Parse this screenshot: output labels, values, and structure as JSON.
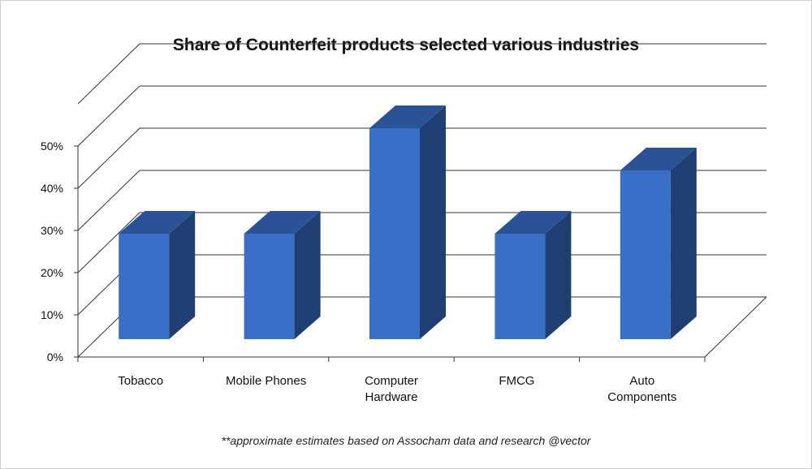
{
  "chart_data": {
    "type": "bar",
    "title": "Share of Counterfeit products selected various industries",
    "categories": [
      [
        "Tobacco"
      ],
      [
        "Mobile Phones"
      ],
      [
        "Computer",
        "Hardware"
      ],
      [
        "FMCG"
      ],
      [
        "Auto",
        "Components"
      ]
    ],
    "values": [
      25,
      25,
      50,
      25,
      40
    ],
    "ylim": [
      0,
      60
    ],
    "yticks": [
      "0%",
      "10%",
      "20%",
      "30%",
      "40%",
      "50%"
    ],
    "grid": true,
    "style": "3d",
    "colors": {
      "front": "#3a6fc8",
      "side": "#1f3f73",
      "top": "#2b5296",
      "grid": "#333333",
      "text": "#111111"
    },
    "footnote": "**approximate estimates based on Assocham data and research @vector"
  }
}
